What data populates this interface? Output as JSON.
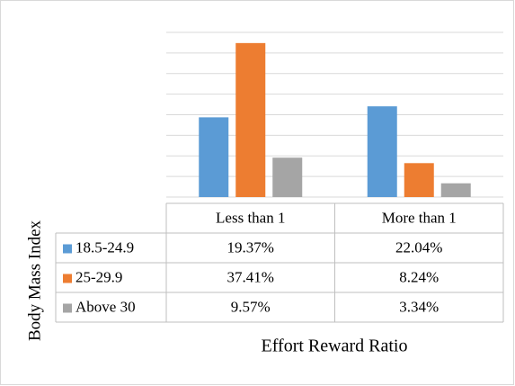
{
  "chart_data": {
    "type": "bar",
    "categories": [
      "Less than 1",
      "More than 1"
    ],
    "series": [
      {
        "name": "18.5-24.9",
        "color": "#5b9bd5",
        "values": [
          19.37,
          22.04
        ],
        "value_labels": [
          "19.37%",
          "22.04%"
        ]
      },
      {
        "name": "25-29.9",
        "color": "#ed7d31",
        "values": [
          37.41,
          8.24
        ],
        "value_labels": [
          "37.41%",
          "8.24%"
        ]
      },
      {
        "name": "Above 30",
        "color": "#a5a5a5",
        "values": [
          9.57,
          3.34
        ],
        "value_labels": [
          "9.57%",
          "3.34%"
        ]
      }
    ],
    "ylim": [
      0,
      40
    ],
    "yticks": [
      0,
      5,
      10,
      15,
      20,
      25,
      30,
      35,
      40
    ],
    "grid": true,
    "xlabel": "Effort Reward Ratio",
    "ylabel": "Body Mass Index"
  }
}
